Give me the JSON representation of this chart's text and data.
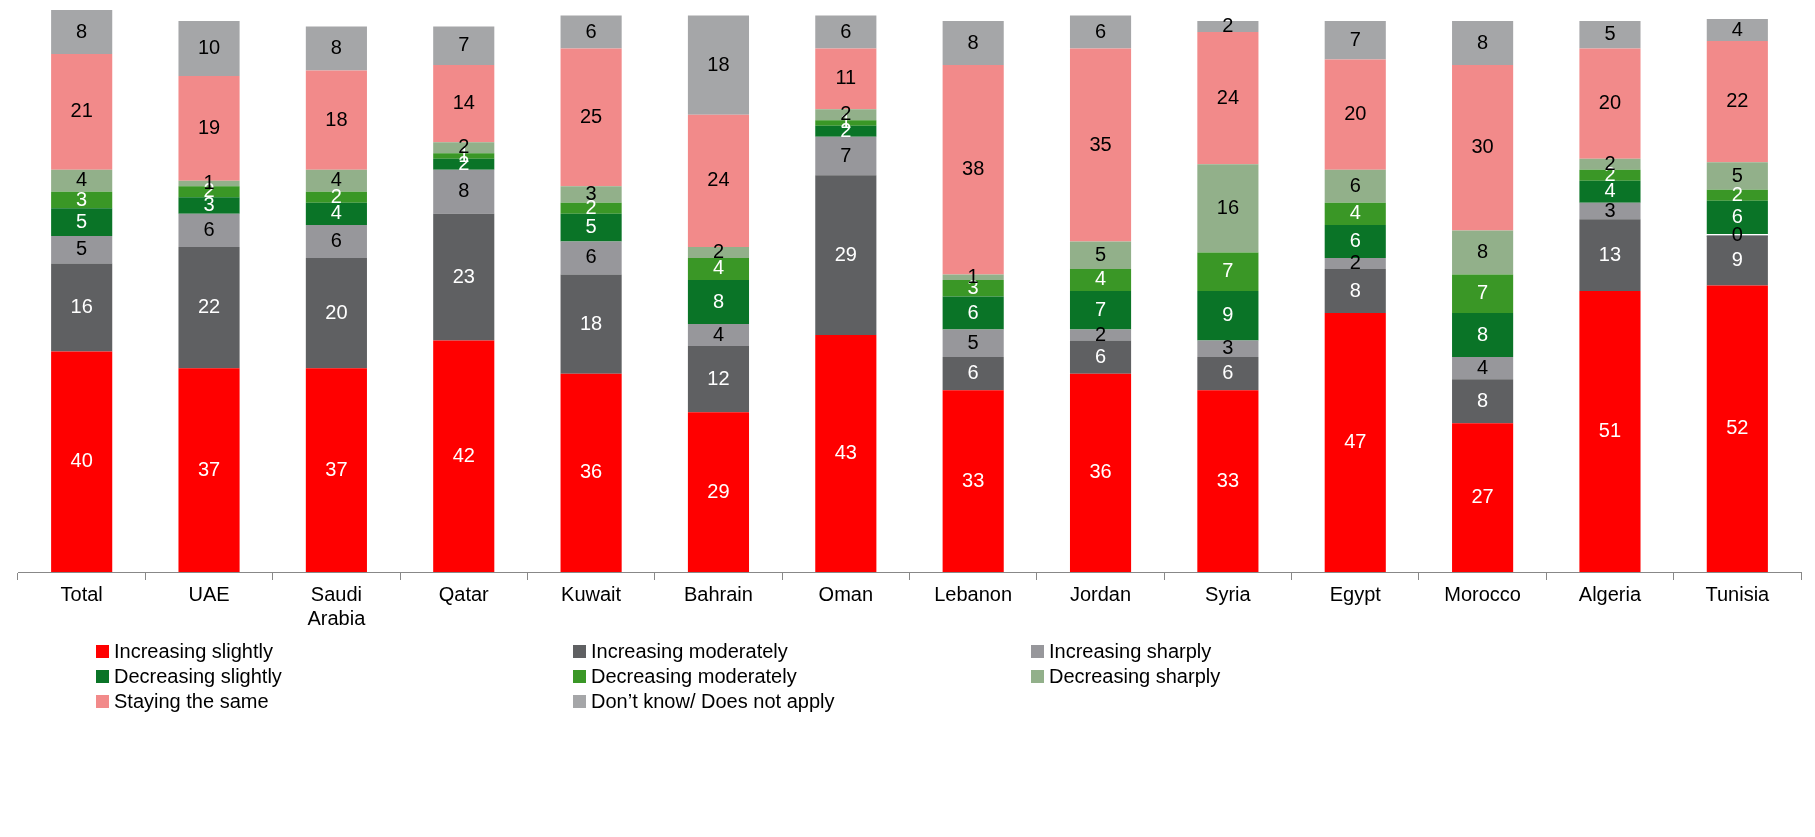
{
  "chart_data": {
    "type": "bar",
    "stacked": true,
    "data_labels": true,
    "grid": false,
    "legend": "bottom",
    "tick_labels": "x",
    "categories": [
      "Total",
      "UAE",
      "Saudi Arabia",
      "Qatar",
      "Kuwait",
      "Bahrain",
      "Oman",
      "Lebanon",
      "Jordan",
      "Syria",
      "Egypt",
      "Morocco",
      "Algeria",
      "Tunisia"
    ],
    "ylim": [
      0,
      102
    ],
    "series": [
      {
        "name": "Increasing slightly",
        "color": "#ff0000",
        "values": [
          40,
          37,
          37,
          42,
          36,
          29,
          43,
          33,
          36,
          33,
          47,
          27,
          51,
          52
        ]
      },
      {
        "name": "Increasing moderately",
        "color": "#5f6062",
        "values": [
          16,
          22,
          20,
          23,
          18,
          12,
          29,
          6,
          6,
          6,
          8,
          8,
          13,
          9
        ]
      },
      {
        "name": "Increasing sharply",
        "color": "#97979b",
        "values": [
          5,
          6,
          6,
          8,
          6,
          4,
          7,
          5,
          2,
          3,
          2,
          4,
          3,
          0
        ]
      },
      {
        "name": "Decreasing slightly",
        "color": "#0a7427",
        "values": [
          5,
          3,
          4,
          2,
          5,
          8,
          2,
          6,
          7,
          9,
          6,
          8,
          4,
          6
        ]
      },
      {
        "name": "Decreasing moderately",
        "color": "#3a9726",
        "values": [
          3,
          2,
          2,
          1,
          2,
          4,
          1,
          3,
          4,
          7,
          4,
          7,
          2,
          2
        ]
      },
      {
        "name": "Decreasing sharply",
        "color": "#92b08a",
        "values": [
          4,
          1,
          4,
          2,
          3,
          2,
          2,
          1,
          5,
          16,
          6,
          8,
          2,
          5
        ]
      },
      {
        "name": "Staying the same",
        "color": "#f28a8a",
        "values": [
          21,
          19,
          18,
          14,
          25,
          24,
          11,
          38,
          35,
          24,
          20,
          30,
          20,
          22
        ]
      },
      {
        "name": "Don’t know/ Does not apply",
        "color": "#a5a6a8",
        "values": [
          8,
          10,
          8,
          7,
          6,
          18,
          6,
          8,
          6,
          2,
          7,
          8,
          5,
          4
        ]
      }
    ]
  }
}
